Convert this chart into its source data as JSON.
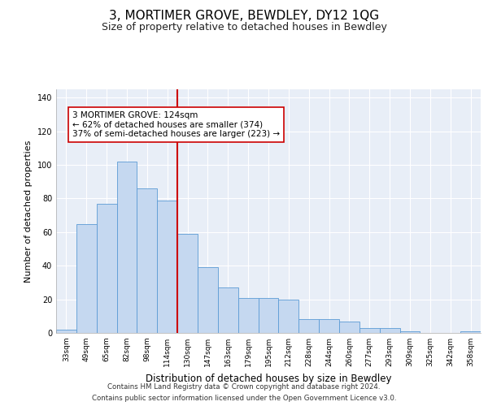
{
  "title": "3, MORTIMER GROVE, BEWDLEY, DY12 1QG",
  "subtitle": "Size of property relative to detached houses in Bewdley",
  "xlabel": "Distribution of detached houses by size in Bewdley",
  "ylabel": "Number of detached properties",
  "categories": [
    "33sqm",
    "49sqm",
    "65sqm",
    "82sqm",
    "98sqm",
    "114sqm",
    "130sqm",
    "147sqm",
    "163sqm",
    "179sqm",
    "195sqm",
    "212sqm",
    "228sqm",
    "244sqm",
    "260sqm",
    "277sqm",
    "293sqm",
    "309sqm",
    "325sqm",
    "342sqm",
    "358sqm"
  ],
  "values": [
    2,
    65,
    77,
    102,
    86,
    79,
    59,
    39,
    27,
    21,
    21,
    20,
    8,
    8,
    7,
    3,
    3,
    1,
    0,
    0,
    1
  ],
  "bar_color": "#c5d8f0",
  "bar_edge_color": "#5b9bd5",
  "ref_line_color": "#cc0000",
  "annotation_text": "3 MORTIMER GROVE: 124sqm\n← 62% of detached houses are smaller (374)\n37% of semi-detached houses are larger (223) →",
  "annotation_box_facecolor": "#ffffff",
  "annotation_box_edgecolor": "#cc0000",
  "ylim": [
    0,
    145
  ],
  "yticks": [
    0,
    20,
    40,
    60,
    80,
    100,
    120,
    140
  ],
  "background_color": "#e8eef7",
  "footer_line1": "Contains HM Land Registry data © Crown copyright and database right 2024.",
  "footer_line2": "Contains public sector information licensed under the Open Government Licence v3.0.",
  "title_fontsize": 11,
  "subtitle_fontsize": 9,
  "annotation_fontsize": 7.5,
  "tick_fontsize": 6.5,
  "xlabel_fontsize": 8.5,
  "ylabel_fontsize": 8,
  "footer_fontsize": 6.2
}
